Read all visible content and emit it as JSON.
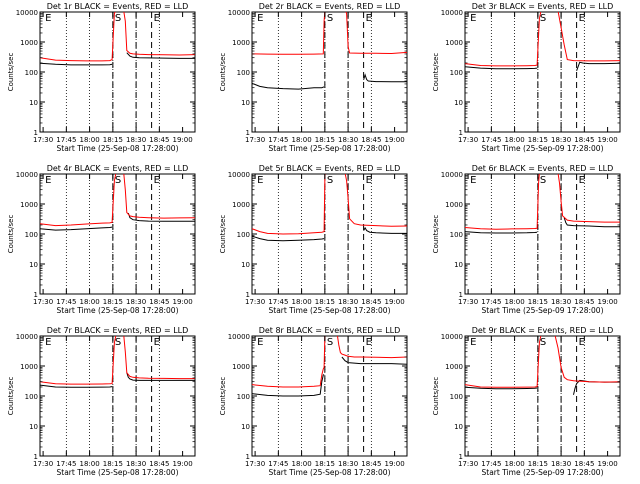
{
  "chart_data": {
    "type": "line",
    "x_tick_labels": [
      "17:30",
      "17:45",
      "18:00",
      "18:15",
      "18:30",
      "18:45",
      "19:00"
    ],
    "x_range_min": [
      0,
      100
    ],
    "y_range": [
      1,
      10000
    ],
    "y_scale": "log",
    "y_tick_labels": [
      "1",
      "10",
      "100",
      "1000",
      "10000"
    ],
    "ylabel": "Counts/sec",
    "xlabel_left": "Start Time (25-Sep-08 17:28:00)",
    "xlabel_right": "Start Time (25-Sep-09 17:28:00)",
    "markers": [
      {
        "label": "E",
        "x": 2
      },
      {
        "label": "S",
        "x": 47
      },
      {
        "label": "E",
        "x": 72
      }
    ],
    "dotted_x": [
      17,
      32,
      47,
      62,
      77
    ],
    "dashed_x": [
      47,
      62,
      72
    ],
    "colors": {
      "events": "#000000",
      "lld": "#ff0000"
    },
    "panels": [
      {
        "title": "Det 1r BLACK = Events, RED = LLD",
        "xlabel_key": "left",
        "series": [
          {
            "key": "events",
            "color": "#000000",
            "x": [
              0,
              10,
              20,
              30,
              40,
              45,
              46.5
            ],
            "y": [
              195,
              180,
              172,
              172,
              172,
              175,
              180
            ]
          },
          {
            "key": "events",
            "color": "#000000",
            "x": [
              56,
              58,
              60,
              64,
              70,
              80,
              90,
              100
            ],
            "y": [
              440,
              340,
              310,
              300,
              295,
              290,
              285,
              285
            ]
          },
          {
            "key": "lld",
            "color": "#ff0000",
            "x": [
              0,
              10,
              20,
              30,
              40,
              45,
              46.5,
              48,
              49,
              49.5
            ],
            "y": [
              300,
              250,
              240,
              235,
              235,
              240,
              260,
              9000,
              11000,
              11000
            ]
          },
          {
            "key": "lld",
            "color": "#ff0000",
            "x": [
              54,
              55,
              56,
              58,
              60,
              64,
              70,
              80,
              90,
              100
            ],
            "y": [
              11000,
              5000,
              520,
              420,
              400,
              390,
              380,
              375,
              370,
              380
            ]
          }
        ]
      },
      {
        "title": "Det 2r BLACK = Events, RED = LLD",
        "xlabel_key": "left",
        "series": [
          {
            "key": "events",
            "color": "#000000",
            "x": [
              0,
              5,
              10,
              20,
              30,
              40,
              45,
              46.5
            ],
            "y": [
              42,
              33,
              30,
              28,
              27,
              30,
              30,
              32
            ]
          },
          {
            "key": "events",
            "color": "#000000",
            "x": [
              72,
              73,
              74,
              75,
              80,
              90,
              100
            ],
            "y": [
              55,
              80,
              56,
              50,
              48,
              47,
              47
            ]
          },
          {
            "key": "lld",
            "color": "#ff0000",
            "x": [
              0,
              10,
              20,
              30,
              40,
              46,
              46.5,
              47,
              47.5
            ],
            "y": [
              400,
              395,
              390,
              390,
              395,
              400,
              5000,
              11000,
              11000
            ]
          },
          {
            "key": "lld",
            "color": "#ff0000",
            "x": [
              60,
              61,
              62,
              63,
              70,
              80,
              90,
              100
            ],
            "y": [
              11000,
              9000,
              700,
              430,
              420,
              420,
              415,
              450
            ]
          }
        ]
      },
      {
        "title": "Det 3r BLACK = Events, RED = LLD",
        "xlabel_key": "right",
        "series": [
          {
            "key": "events",
            "color": "#000000",
            "x": [
              0,
              10,
              20,
              30,
              40,
              45,
              46.5
            ],
            "y": [
              150,
              135,
              128,
              128,
              130,
              132,
              135
            ]
          },
          {
            "key": "events",
            "color": "#000000",
            "x": [
              72,
              74,
              76,
              80,
              90,
              100
            ],
            "y": [
              110,
              210,
              200,
              190,
              190,
              195
            ]
          },
          {
            "key": "lld",
            "color": "#ff0000",
            "x": [
              0,
              10,
              20,
              30,
              40,
              45,
              46.5,
              48,
              49
            ],
            "y": [
              190,
              165,
              160,
              160,
              162,
              165,
              170,
              6000,
              11000
            ]
          },
          {
            "key": "lld",
            "color": "#ff0000",
            "x": [
              60,
              62,
              64,
              66,
              70,
              80,
              90,
              100
            ],
            "y": [
              11000,
              3000,
              800,
              260,
              240,
              235,
              235,
              240
            ]
          }
        ]
      },
      {
        "title": "Det 4r BLACK = Events, RED = LLD",
        "xlabel_key": "left",
        "series": [
          {
            "key": "events",
            "color": "#000000",
            "x": [
              0,
              10,
              20,
              30,
              40,
              45,
              46.5
            ],
            "y": [
              150,
              135,
              140,
              150,
              160,
              165,
              170
            ]
          },
          {
            "key": "events",
            "color": "#000000",
            "x": [
              57,
              58,
              60,
              64,
              70,
              80,
              90,
              100
            ],
            "y": [
              500,
              350,
              300,
              280,
              270,
              265,
              265,
              265
            ]
          },
          {
            "key": "lld",
            "color": "#ff0000",
            "x": [
              0,
              10,
              20,
              30,
              40,
              45,
              46.5,
              48,
              49
            ],
            "y": [
              220,
              190,
              200,
              215,
              230,
              235,
              245,
              6000,
              11000
            ]
          },
          {
            "key": "lld",
            "color": "#ff0000",
            "x": [
              54,
              55,
              56,
              58,
              60,
              64,
              70,
              80,
              90,
              100
            ],
            "y": [
              11000,
              3000,
              520,
              400,
              380,
              360,
              350,
              340,
              345,
              350
            ]
          }
        ]
      },
      {
        "title": "Det 5r BLACK = Events, RED = LLD",
        "xlabel_key": "left",
        "series": [
          {
            "key": "events",
            "color": "#000000",
            "x": [
              0,
              5,
              10,
              20,
              30,
              40,
              45,
              46.5
            ],
            "y": [
              85,
              70,
              62,
              60,
              62,
              65,
              68,
              70
            ]
          },
          {
            "key": "events",
            "color": "#000000",
            "x": [
              72,
              73,
              74,
              76,
              80,
              90,
              100
            ],
            "y": [
              130,
              160,
              130,
              115,
              110,
              105,
              105
            ]
          },
          {
            "key": "lld",
            "color": "#ff0000",
            "x": [
              0,
              5,
              10,
              20,
              30,
              40,
              45,
              46.5,
              47,
              47.5
            ],
            "y": [
              150,
              120,
              105,
              100,
              102,
              110,
              115,
              120,
              9000,
              11000
            ]
          },
          {
            "key": "lld",
            "color": "#ff0000",
            "x": [
              60,
              61,
              62,
              63,
              66,
              70,
              80,
              90,
              100
            ],
            "y": [
              11000,
              6000,
              1500,
              320,
              220,
              200,
              190,
              180,
              185
            ]
          }
        ]
      },
      {
        "title": "Det 6r BLACK = Events, RED = LLD",
        "xlabel_key": "right",
        "series": [
          {
            "key": "events",
            "color": "#000000",
            "x": [
              0,
              10,
              20,
              30,
              40,
              45,
              46.5
            ],
            "y": [
              120,
              110,
              108,
              108,
              110,
              112,
              115
            ]
          },
          {
            "key": "events",
            "color": "#000000",
            "x": [
              64,
              65,
              66,
              70,
              80,
              90,
              100
            ],
            "y": [
              350,
              240,
              200,
              190,
              185,
              175,
              175
            ]
          },
          {
            "key": "lld",
            "color": "#ff0000",
            "x": [
              0,
              10,
              20,
              30,
              40,
              45,
              46.5,
              47.5,
              48
            ],
            "y": [
              165,
              150,
              145,
              148,
              150,
              152,
              155,
              5000,
              11000
            ]
          },
          {
            "key": "lld",
            "color": "#ff0000",
            "x": [
              60,
              61,
              62,
              63,
              66,
              70,
              80,
              90,
              100
            ],
            "y": [
              11000,
              5000,
              1200,
              400,
              290,
              270,
              260,
              250,
              250
            ]
          }
        ]
      },
      {
        "title": "Det 7r BLACK = Events, RED = LLD",
        "xlabel_key": "left",
        "series": [
          {
            "key": "events",
            "color": "#000000",
            "x": [
              0,
              10,
              20,
              30,
              40,
              45,
              46.5
            ],
            "y": [
              230,
              200,
              195,
              195,
              198,
              200,
              205
            ]
          },
          {
            "key": "events",
            "color": "#000000",
            "x": [
              56,
              57,
              58,
              60,
              64,
              70,
              80,
              90,
              100
            ],
            "y": [
              600,
              420,
              370,
              340,
              330,
              330,
              330,
              330,
              330
            ]
          },
          {
            "key": "lld",
            "color": "#ff0000",
            "x": [
              0,
              10,
              20,
              30,
              40,
              45,
              46.5,
              48,
              49
            ],
            "y": [
              300,
              255,
              250,
              250,
              252,
              255,
              260,
              6000,
              11000
            ]
          },
          {
            "key": "lld",
            "color": "#ff0000",
            "x": [
              54,
              55,
              56,
              58,
              60,
              64,
              70,
              80,
              90,
              100
            ],
            "y": [
              11000,
              3000,
              600,
              450,
              420,
              400,
              390,
              385,
              380,
              380
            ]
          }
        ]
      },
      {
        "title": "Det 8r BLACK = Events, RED = LLD",
        "xlabel_key": "left",
        "series": [
          {
            "key": "events",
            "color": "#000000",
            "x": [
              0,
              10,
              20,
              30,
              40,
              44,
              45,
              46,
              46.5
            ],
            "y": [
              120,
              105,
              100,
              100,
              105,
              115,
              300,
              500,
              520
            ]
          },
          {
            "key": "events",
            "color": "#000000",
            "x": [
              58,
              60,
              62,
              66,
              70,
              80,
              90,
              100
            ],
            "y": [
              2000,
              1500,
              1300,
              1250,
              1200,
              1200,
              1200,
              1150
            ]
          },
          {
            "key": "lld",
            "color": "#ff0000",
            "x": [
              0,
              10,
              20,
              30,
              40,
              44,
              45,
              46,
              46.5,
              47
            ],
            "y": [
              240,
              210,
              200,
              200,
              210,
              220,
              500,
              800,
              900,
              11000
            ]
          },
          {
            "key": "lld",
            "color": "#ff0000",
            "x": [
              55,
              56,
              57,
              58,
              60,
              62,
              66,
              70,
              80,
              90,
              100
            ],
            "y": [
              11000,
              5000,
              2800,
              2500,
              2300,
              2100,
              2000,
              2000,
              1950,
              1900,
              2000
            ]
          }
        ]
      },
      {
        "title": "Det 9r BLACK = Events, RED = LLD",
        "xlabel_key": "right",
        "series": [
          {
            "key": "events",
            "color": "#000000",
            "x": [
              0,
              10,
              20,
              30,
              40,
              45,
              46.5
            ],
            "y": [
              195,
              180,
              175,
              175,
              178,
              180,
              185
            ]
          },
          {
            "key": "events",
            "color": "#000000",
            "x": [
              70,
              71,
              72,
              74,
              76,
              80,
              90,
              100
            ],
            "y": [
              110,
              180,
              260,
              330,
              320,
              300,
              290,
              290
            ]
          },
          {
            "key": "lld",
            "color": "#ff0000",
            "x": [
              0,
              10,
              20,
              30,
              40,
              45,
              46.5,
              48,
              49
            ],
            "y": [
              240,
              200,
              195,
              195,
              198,
              200,
              205,
              6000,
              11000
            ]
          },
          {
            "key": "lld",
            "color": "#ff0000",
            "x": [
              58,
              60,
              62,
              64,
              66,
              70,
              80,
              90,
              100
            ],
            "y": [
              11000,
              4000,
              900,
              420,
              350,
              320,
              300,
              290,
              300
            ]
          }
        ]
      }
    ]
  }
}
